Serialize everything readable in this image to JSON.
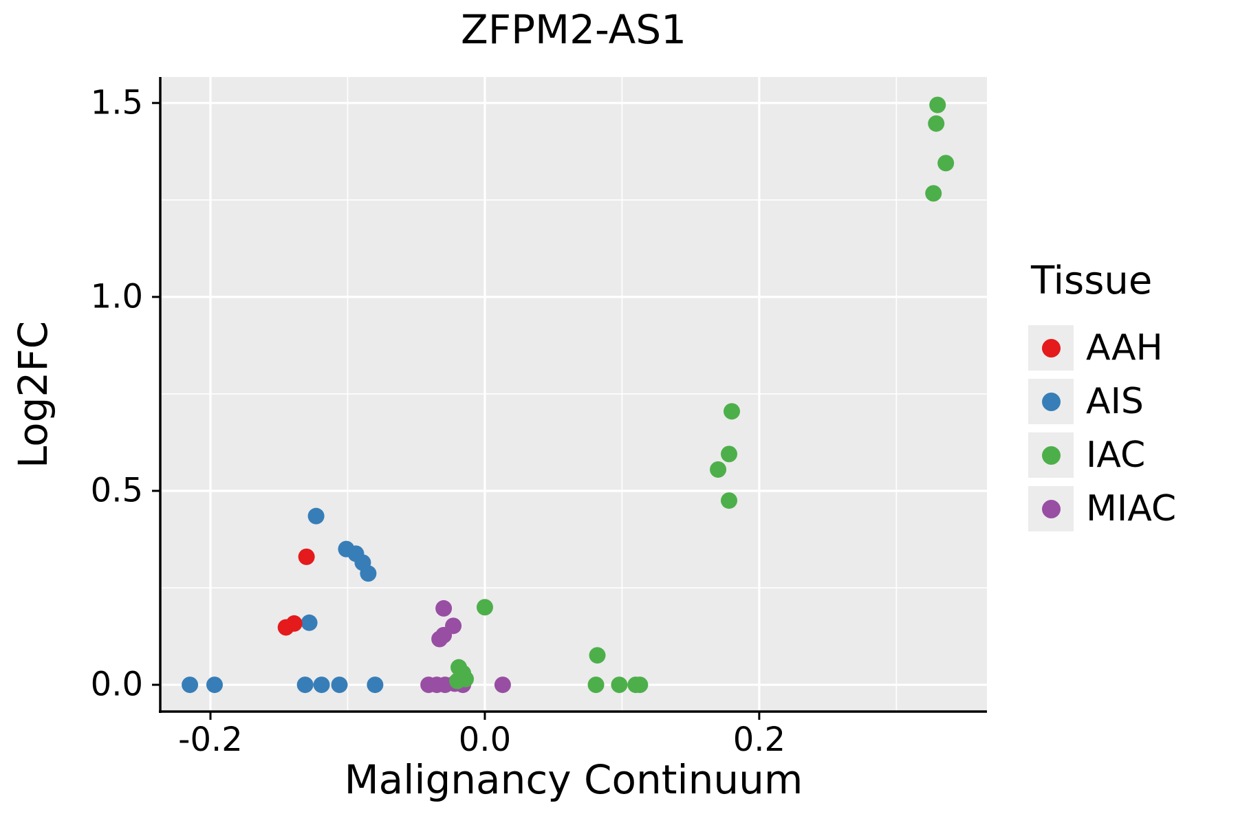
{
  "chart_data": {
    "type": "scatter",
    "title": "ZFPM2-AS1",
    "xlabel": "Malignancy Continuum",
    "ylabel": "Log2FC",
    "xlim": [
      -0.2366,
      0.366
    ],
    "ylim": [
      -0.069,
      1.567
    ],
    "x_ticks": [
      -0.2,
      0.0,
      0.2
    ],
    "x_tick_labels": [
      "-0.2",
      "0.0",
      "0.2"
    ],
    "x_minor_gridlines": [
      -0.1,
      0.1,
      0.3
    ],
    "y_ticks": [
      0.0,
      0.5,
      1.0,
      1.5
    ],
    "y_tick_labels": [
      "0.0",
      "0.5",
      "1.0",
      "1.5"
    ],
    "y_minor_gridlines": [
      0.25,
      0.75,
      1.25
    ],
    "grid": "white major and minor gridlines on gray panel",
    "panel_background": "#EBEBEB",
    "grid_color": "#FFFFFF",
    "axis_color": "#000000",
    "legend_title": "Tissue",
    "legend_position": "right",
    "legend_key_background": "#ECECEC",
    "point_radius_px": 12,
    "series": [
      {
        "name": "AAH",
        "color": "#E41A1C",
        "points": [
          [
            -0.145,
            0.148
          ],
          [
            -0.139,
            0.158
          ],
          [
            -0.13,
            0.33
          ]
        ]
      },
      {
        "name": "AIS",
        "color": "#377EB8",
        "points": [
          [
            -0.215,
            0.0
          ],
          [
            -0.197,
            0.0
          ],
          [
            -0.131,
            0.0
          ],
          [
            -0.119,
            0.0
          ],
          [
            -0.106,
            0.0
          ],
          [
            -0.08,
            0.0
          ],
          [
            -0.123,
            0.435
          ],
          [
            -0.101,
            0.35
          ],
          [
            -0.094,
            0.338
          ],
          [
            -0.089,
            0.315
          ],
          [
            -0.085,
            0.287
          ],
          [
            -0.128,
            0.16
          ]
        ]
      },
      {
        "name": "IAC",
        "color": "#4DAF4A",
        "points": [
          [
            0.0,
            0.2
          ],
          [
            -0.019,
            0.045
          ],
          [
            -0.016,
            0.03
          ],
          [
            -0.02,
            0.01
          ],
          [
            -0.014,
            0.015
          ],
          [
            0.082,
            0.076
          ],
          [
            0.081,
            0.0
          ],
          [
            0.098,
            0.0
          ],
          [
            0.11,
            0.0
          ],
          [
            0.113,
            0.0
          ],
          [
            0.18,
            0.705
          ],
          [
            0.178,
            0.595
          ],
          [
            0.17,
            0.555
          ],
          [
            0.178,
            0.475
          ],
          [
            0.33,
            1.495
          ],
          [
            0.329,
            1.447
          ],
          [
            0.336,
            1.345
          ],
          [
            0.327,
            1.267
          ]
        ]
      },
      {
        "name": "MIAC",
        "color": "#984EA3",
        "points": [
          [
            -0.03,
            0.197
          ],
          [
            -0.023,
            0.152
          ],
          [
            -0.03,
            0.128
          ],
          [
            -0.033,
            0.118
          ],
          [
            -0.041,
            0.0
          ],
          [
            -0.035,
            0.0
          ],
          [
            -0.029,
            0.0
          ],
          [
            -0.022,
            0.003
          ],
          [
            -0.016,
            0.0
          ],
          [
            0.013,
            0.0
          ]
        ]
      }
    ]
  }
}
